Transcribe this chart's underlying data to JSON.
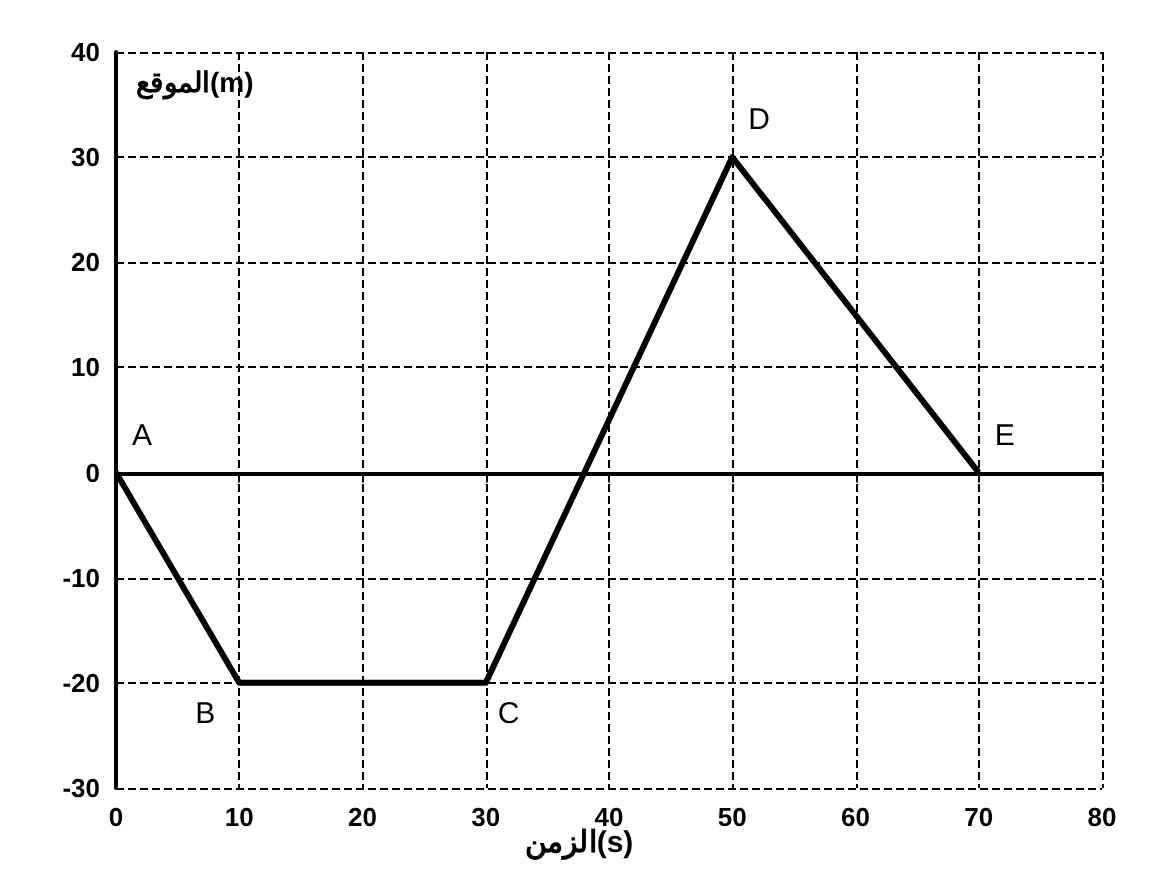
{
  "chart_data": {
    "type": "line",
    "xlabel": "الزمن(s)",
    "ylabel": "الموقع(m)",
    "x": [
      0,
      10,
      30,
      50,
      70
    ],
    "series": [
      {
        "color": "#000000",
        "values": [
          0,
          -20,
          -20,
          30,
          0
        ]
      }
    ],
    "xlim": [
      0,
      80
    ],
    "xticks": [
      0,
      10,
      20,
      30,
      40,
      50,
      60,
      70,
      80
    ],
    "ylim": [
      -30,
      40
    ],
    "yticks": [
      -30,
      -20,
      -10,
      0,
      10,
      20,
      30,
      40
    ],
    "grid": true,
    "marker": "none",
    "line_style": "solid",
    "annotations": [
      {
        "text": "A",
        "x": 0,
        "y": 0
      },
      {
        "text": "B",
        "x": 10,
        "y": -20
      },
      {
        "text": "C",
        "x": 30,
        "y": -20
      },
      {
        "text": "D",
        "x": 50,
        "y": 30
      },
      {
        "text": "E",
        "x": 70,
        "y": 0
      }
    ]
  }
}
